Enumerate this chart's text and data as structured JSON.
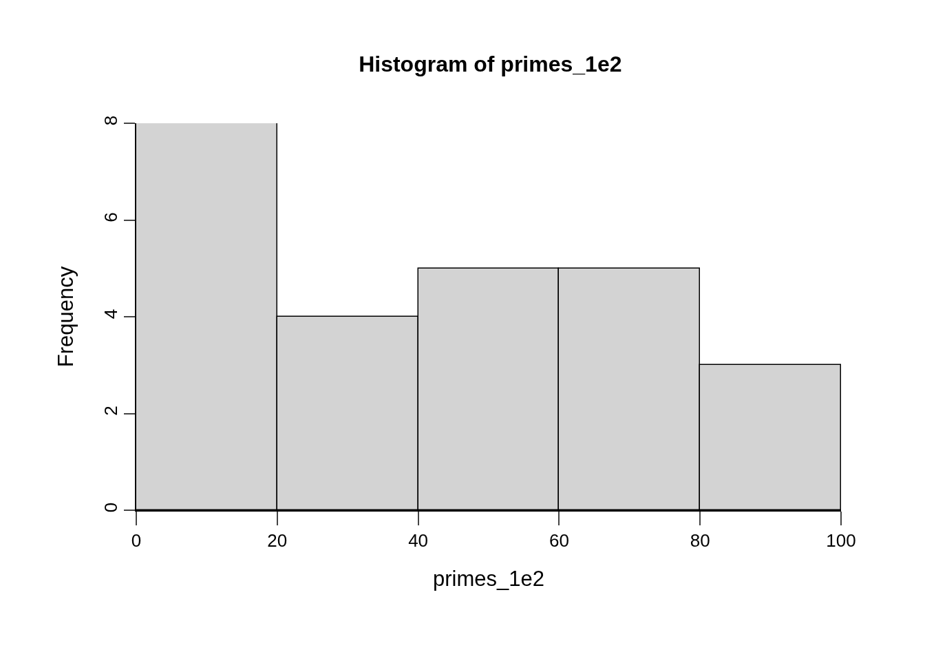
{
  "chart_data": {
    "type": "histogram",
    "title": "Histogram of primes_1e2",
    "xlabel": "primes_1e2",
    "ylabel": "Frequency",
    "bins": [
      0,
      20,
      40,
      60,
      80,
      100
    ],
    "values": [
      8,
      4,
      5,
      5,
      3
    ],
    "color": "#d3d3d3",
    "xlim": [
      0,
      100
    ],
    "xticks": [
      0,
      20,
      40,
      60,
      80,
      100
    ],
    "ylim": [
      0,
      8
    ],
    "yticks": [
      0,
      2,
      4,
      6,
      8
    ]
  }
}
